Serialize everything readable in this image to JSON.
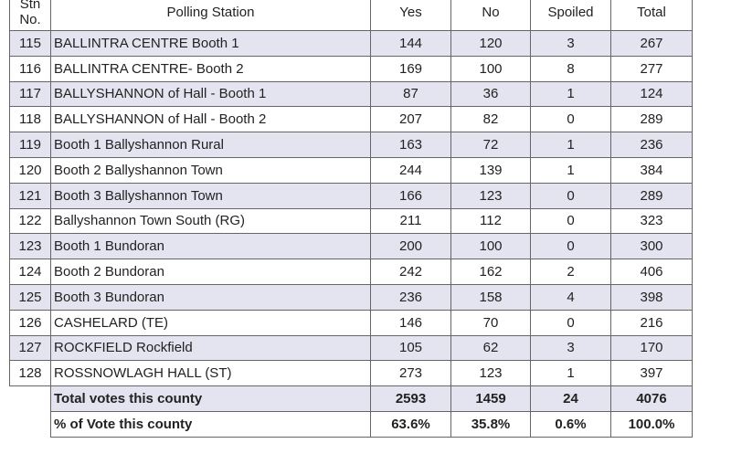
{
  "table": {
    "header": [
      "Stn No.",
      "Polling Station",
      "Yes",
      "No",
      "Spoiled",
      "Total"
    ],
    "rows": [
      [
        115,
        "BALLINTRA CENTRE Booth 1",
        144,
        120,
        3,
        267
      ],
      [
        116,
        "BALLINTRA CENTRE- Booth 2",
        169,
        100,
        8,
        277
      ],
      [
        117,
        "BALLYSHANNON of Hall - Booth 1",
        87,
        36,
        1,
        124
      ],
      [
        118,
        "BALLYSHANNON of Hall - Booth 2",
        207,
        82,
        0,
        289
      ],
      [
        119,
        "Booth 1 Ballyshannon Rural",
        163,
        72,
        1,
        236
      ],
      [
        120,
        "Booth 2 Ballyshannon Town",
        244,
        139,
        1,
        384
      ],
      [
        121,
        "Booth 3 Ballyshannon Town",
        166,
        123,
        0,
        289
      ],
      [
        122,
        "Ballyshannon Town South (RG)",
        211,
        112,
        0,
        323
      ],
      [
        123,
        "Booth 1 Bundoran",
        200,
        100,
        0,
        300
      ],
      [
        124,
        "Booth 2 Bundoran",
        242,
        162,
        2,
        406
      ],
      [
        125,
        "Booth 3 Bundoran",
        236,
        158,
        4,
        398
      ],
      [
        126,
        "CASHELARD (TE)",
        146,
        70,
        0,
        216
      ],
      [
        127,
        "ROCKFIELD Rockfield",
        105,
        62,
        3,
        170
      ],
      [
        128,
        "ROSSNOWLAGH HALL (ST)",
        273,
        123,
        1,
        397
      ]
    ],
    "totals": [
      [
        "Total votes this county",
        2593,
        1459,
        24,
        4076
      ],
      [
        "% of Vote this county",
        "63.6%",
        "35.8%",
        "0.6%",
        "100.0%"
      ]
    ]
  }
}
